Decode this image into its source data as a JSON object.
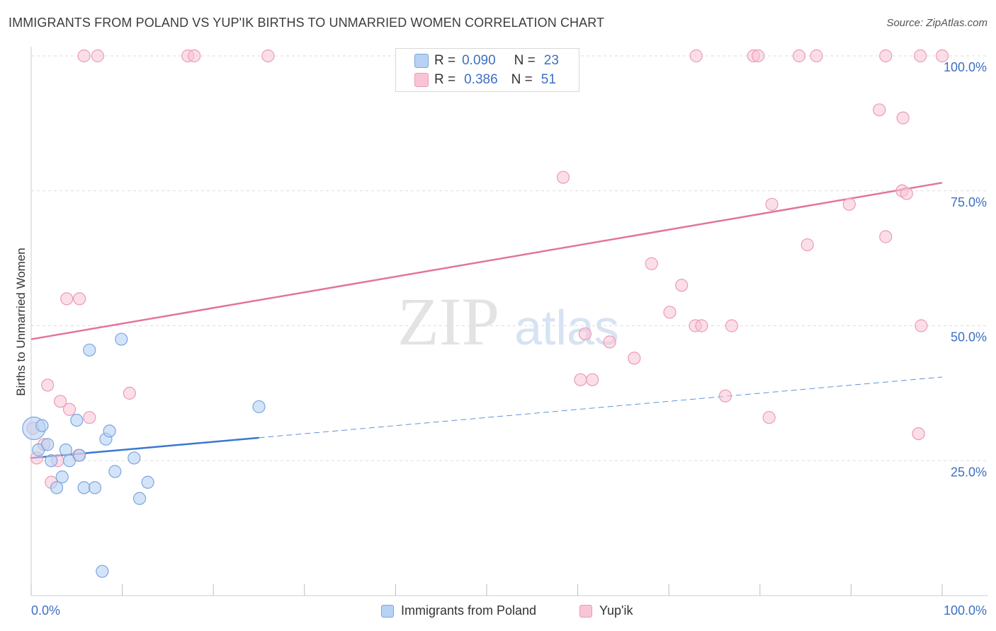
{
  "title": "IMMIGRANTS FROM POLAND VS YUP'IK BIRTHS TO UNMARRIED WOMEN CORRELATION CHART",
  "source": "Source: ZipAtlas.com",
  "watermark": {
    "zip": "ZIP",
    "atlas": "atlas"
  },
  "legend_top": {
    "rows": [
      {
        "r_label": "R =",
        "r_value": "0.090",
        "n_label": "N =",
        "n_value": "23"
      },
      {
        "r_label": "R =",
        "r_value": "0.386",
        "n_label": "N =",
        "n_value": "51"
      }
    ]
  },
  "legend_bottom": [
    "Immigrants from Poland",
    "Yup'ik"
  ],
  "colors": {
    "blue_fill": "#b8d2f3",
    "blue_stroke": "#7aa6dd",
    "blue_line": "#3a78d0",
    "pink_fill": "#f8c5d5",
    "pink_stroke": "#ec9ab4",
    "pink_line": "#e2749c",
    "tick_label": "#3d6fc4",
    "grid": "#dddddd"
  },
  "chart_data": {
    "type": "scatter",
    "xlabel": "",
    "ylabel": "Births to Unmarried Women",
    "x_tick_labels": [
      "0.0%",
      "100.0%"
    ],
    "y_tick_labels": [
      "25.0%",
      "50.0%",
      "75.0%",
      "100.0%"
    ],
    "xlim": [
      0,
      100
    ],
    "ylim": [
      0,
      100
    ],
    "grid": true,
    "series": [
      {
        "name": "Immigrants from Poland",
        "r": 0.09,
        "n": 23,
        "trend": {
          "x0": 0,
          "y0": 25.5,
          "x_solid_end": 25,
          "x1": 100,
          "y1": 40.5
        },
        "points": [
          {
            "x": 0.3,
            "y": 31.0,
            "big": true
          },
          {
            "x": 1.2,
            "y": 31.5
          },
          {
            "x": 0.8,
            "y": 27.0
          },
          {
            "x": 1.8,
            "y": 28.0
          },
          {
            "x": 2.2,
            "y": 25.0
          },
          {
            "x": 2.8,
            "y": 20.0
          },
          {
            "x": 3.4,
            "y": 22.0
          },
          {
            "x": 3.8,
            "y": 27.0
          },
          {
            "x": 4.2,
            "y": 25.0
          },
          {
            "x": 5.0,
            "y": 32.5
          },
          {
            "x": 5.3,
            "y": 26.0
          },
          {
            "x": 5.8,
            "y": 20.0
          },
          {
            "x": 6.4,
            "y": 45.5
          },
          {
            "x": 7.0,
            "y": 20.0
          },
          {
            "x": 8.2,
            "y": 29.0
          },
          {
            "x": 8.6,
            "y": 30.5
          },
          {
            "x": 9.2,
            "y": 23.0
          },
          {
            "x": 9.9,
            "y": 47.5
          },
          {
            "x": 11.3,
            "y": 25.5
          },
          {
            "x": 11.9,
            "y": 18.0
          },
          {
            "x": 12.8,
            "y": 21.0
          },
          {
            "x": 7.8,
            "y": 4.5
          },
          {
            "x": 25.0,
            "y": 35.0
          }
        ]
      },
      {
        "name": "Yup'ik",
        "r": 0.386,
        "n": 51,
        "trend": {
          "x0": 0,
          "y0": 47.5,
          "x1": 100,
          "y1": 76.5
        },
        "points": [
          {
            "x": 0.2,
            "y": 31.0
          },
          {
            "x": 0.6,
            "y": 25.5
          },
          {
            "x": 1.4,
            "y": 28.0
          },
          {
            "x": 1.8,
            "y": 39.0
          },
          {
            "x": 2.2,
            "y": 21.0
          },
          {
            "x": 2.9,
            "y": 25.0
          },
          {
            "x": 3.2,
            "y": 36.0
          },
          {
            "x": 3.9,
            "y": 55.0
          },
          {
            "x": 4.2,
            "y": 34.5
          },
          {
            "x": 5.2,
            "y": 26.0
          },
          {
            "x": 5.3,
            "y": 55.0
          },
          {
            "x": 6.4,
            "y": 33.0
          },
          {
            "x": 10.8,
            "y": 37.5
          },
          {
            "x": 5.8,
            "y": 100
          },
          {
            "x": 7.3,
            "y": 100
          },
          {
            "x": 17.2,
            "y": 100
          },
          {
            "x": 17.9,
            "y": 100
          },
          {
            "x": 26.0,
            "y": 100
          },
          {
            "x": 55.0,
            "y": 100
          },
          {
            "x": 73.0,
            "y": 100
          },
          {
            "x": 79.3,
            "y": 100
          },
          {
            "x": 79.8,
            "y": 100
          },
          {
            "x": 84.3,
            "y": 100
          },
          {
            "x": 86.2,
            "y": 100
          },
          {
            "x": 93.8,
            "y": 100
          },
          {
            "x": 97.6,
            "y": 100
          },
          {
            "x": 100,
            "y": 100
          },
          {
            "x": 93.1,
            "y": 90.0
          },
          {
            "x": 95.7,
            "y": 88.5
          },
          {
            "x": 58.4,
            "y": 77.5
          },
          {
            "x": 81.3,
            "y": 72.5
          },
          {
            "x": 89.8,
            "y": 72.5
          },
          {
            "x": 95.6,
            "y": 75.0
          },
          {
            "x": 96.1,
            "y": 74.5
          },
          {
            "x": 93.8,
            "y": 66.5
          },
          {
            "x": 85.2,
            "y": 65.0
          },
          {
            "x": 68.1,
            "y": 61.5
          },
          {
            "x": 71.4,
            "y": 57.5
          },
          {
            "x": 70.1,
            "y": 52.5
          },
          {
            "x": 72.9,
            "y": 50.0
          },
          {
            "x": 73.6,
            "y": 50.0
          },
          {
            "x": 76.9,
            "y": 50.0
          },
          {
            "x": 97.7,
            "y": 50.0
          },
          {
            "x": 60.8,
            "y": 48.5
          },
          {
            "x": 63.5,
            "y": 47.0
          },
          {
            "x": 66.2,
            "y": 44.0
          },
          {
            "x": 60.3,
            "y": 40.0
          },
          {
            "x": 61.6,
            "y": 40.0
          },
          {
            "x": 76.2,
            "y": 37.0
          },
          {
            "x": 81.0,
            "y": 33.0
          },
          {
            "x": 97.4,
            "y": 30.0
          }
        ]
      }
    ]
  }
}
